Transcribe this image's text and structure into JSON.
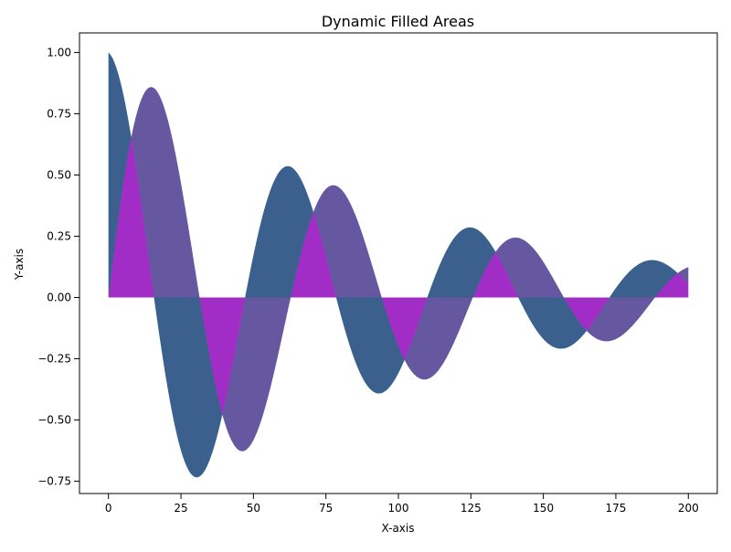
{
  "chart_data": {
    "type": "area",
    "title": "Dynamic Filled Areas",
    "xlabel": "X-axis",
    "ylabel": "Y-axis",
    "xlim": [
      -10,
      210
    ],
    "ylim": [
      -0.8,
      1.08
    ],
    "grid": false,
    "legend": "none",
    "x_ticks": [
      0,
      25,
      50,
      75,
      100,
      125,
      150,
      175,
      200
    ],
    "x_tick_labels": [
      "0",
      "25",
      "50",
      "75",
      "100",
      "125",
      "150",
      "175",
      "200"
    ],
    "y_ticks": [
      -0.75,
      -0.5,
      -0.25,
      0.0,
      0.25,
      0.5,
      0.75,
      1.0
    ],
    "y_tick_labels": [
      "−0.75",
      "−0.50",
      "−0.25",
      "0.00",
      "0.25",
      "0.50",
      "0.75",
      "1.00"
    ],
    "x_range": [
      0,
      200
    ],
    "series": [
      {
        "type": "fill_between_zero",
        "formula": "exp(-x/100) * cos(x/10)",
        "color": "#00FFFF",
        "alpha": 0.7
      },
      {
        "type": "fill_between_zero",
        "formula": "exp(-x/100) * sin(x/10)",
        "color": "#FF00FF",
        "alpha": 0.7
      },
      {
        "type": "fill_between_curves",
        "formula_upper": "exp(-x/100) * cos(x/10)",
        "formula_lower": "exp(-x/100) * sin(x/10)",
        "color": "#006060",
        "alpha": 0.6
      },
      {
        "type": "fill_between_zero",
        "formula": "exp(-x/100) * cos(x/10)",
        "color": "#6A0070",
        "alpha": 0.4
      }
    ]
  }
}
